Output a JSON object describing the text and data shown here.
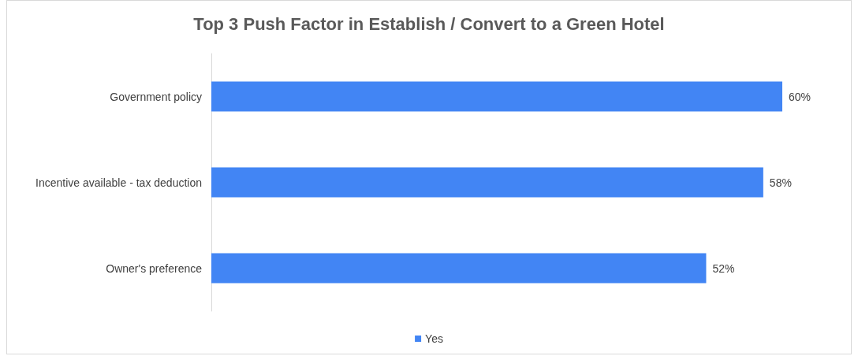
{
  "chart_data": {
    "type": "bar",
    "orientation": "horizontal",
    "title": "Top 3 Push Factor in Establish / Convert to a Green Hotel",
    "categories": [
      "Government policy",
      "Incentive available - tax deduction",
      "Owner's preference"
    ],
    "series": [
      {
        "name": "Yes",
        "color": "#4285f4",
        "values": [
          60,
          58,
          52
        ],
        "value_labels": [
          "60%",
          "58%",
          "52%"
        ]
      }
    ],
    "xlim": [
      0,
      60
    ],
    "tick_labels": "y",
    "legend": "bottom"
  }
}
